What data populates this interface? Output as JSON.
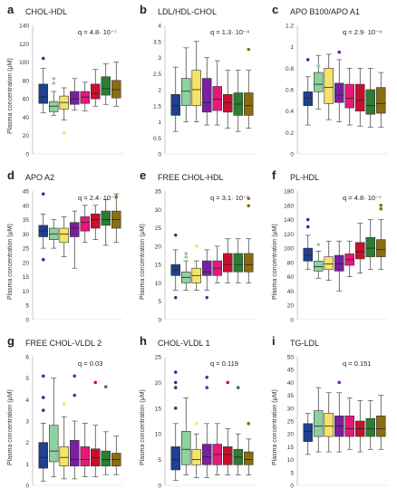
{
  "figure": {
    "series_colors": [
      "#1f3f8f",
      "#8fd19e",
      "#f4e36a",
      "#7a1fa2",
      "#e8177a",
      "#c8102e",
      "#2e7d32",
      "#8a6d12"
    ]
  },
  "chart_data": [
    {
      "panel": "a",
      "type": "box",
      "title": "CHOL-HDL",
      "q": "q = 4.8· 10⁻⁷",
      "ylabel": "Plasma concentration (μM)",
      "ylim": [
        0,
        140
      ],
      "ticks": [
        0,
        20,
        40,
        60,
        80,
        100,
        120,
        140
      ],
      "boxes": [
        {
          "min": 45,
          "q1": 55,
          "median": 62,
          "q3": 76,
          "max": 93,
          "outliers": [
            104
          ]
        },
        {
          "min": 42,
          "q1": 46,
          "median": 52,
          "q3": 57,
          "max": 68,
          "outliers": [
            77,
            82
          ]
        },
        {
          "min": 37,
          "q1": 49,
          "median": 56,
          "q3": 63,
          "max": 72,
          "outliers": [
            23
          ]
        },
        {
          "min": 48,
          "q1": 54,
          "median": 60,
          "q3": 68,
          "max": 82,
          "outliers": []
        },
        {
          "min": 47,
          "q1": 55,
          "median": 62,
          "q3": 68,
          "max": 78,
          "outliers": []
        },
        {
          "min": 52,
          "q1": 60,
          "median": 66,
          "q3": 76,
          "max": 92,
          "outliers": []
        },
        {
          "min": 54,
          "q1": 64,
          "median": 71,
          "q3": 84,
          "max": 98,
          "outliers": []
        },
        {
          "min": 52,
          "q1": 61,
          "median": 70,
          "q3": 80,
          "max": 100,
          "outliers": []
        }
      ]
    },
    {
      "panel": "b",
      "type": "box",
      "title": "LDL/HDL-CHOL",
      "q": "q = 1.3· 10⁻⁴",
      "ylabel": "",
      "ylim": [
        0,
        4
      ],
      "ticks": [
        0,
        0.5,
        1,
        1.5,
        2,
        2.5,
        3,
        3.5,
        4
      ],
      "boxes": [
        {
          "min": 0.7,
          "q1": 1.2,
          "median": 1.5,
          "q3": 1.85,
          "max": 2.7,
          "outliers": []
        },
        {
          "min": 1.0,
          "q1": 1.5,
          "median": 1.95,
          "q3": 2.35,
          "max": 3.3,
          "outliers": []
        },
        {
          "min": 1.0,
          "q1": 1.5,
          "median": 2.0,
          "q3": 2.6,
          "max": 3.5,
          "outliers": []
        },
        {
          "min": 0.9,
          "q1": 1.3,
          "median": 1.6,
          "q3": 2.35,
          "max": 3.0,
          "outliers": []
        },
        {
          "min": 0.9,
          "q1": 1.35,
          "median": 1.7,
          "q3": 2.1,
          "max": 2.9,
          "outliers": []
        },
        {
          "min": 0.8,
          "q1": 1.3,
          "median": 1.6,
          "q3": 1.85,
          "max": 2.6,
          "outliers": []
        },
        {
          "min": 0.7,
          "q1": 1.2,
          "median": 1.55,
          "q3": 1.9,
          "max": 2.6,
          "outliers": []
        },
        {
          "min": 0.8,
          "q1": 1.2,
          "median": 1.5,
          "q3": 1.9,
          "max": 2.6,
          "outliers": [
            3.25
          ]
        }
      ]
    },
    {
      "panel": "c",
      "type": "box",
      "title": "APO B100/APO A1",
      "q": "q = 2.9· 10⁻⁴",
      "ylabel": "",
      "ylim": [
        0,
        1.2
      ],
      "ticks": [
        0,
        0.2,
        0.4,
        0.6,
        0.8,
        1,
        1.2
      ],
      "boxes": [
        {
          "min": 0.27,
          "q1": 0.45,
          "median": 0.52,
          "q3": 0.58,
          "max": 0.72,
          "outliers": [
            0.88
          ]
        },
        {
          "min": 0.42,
          "q1": 0.58,
          "median": 0.65,
          "q3": 0.76,
          "max": 0.92,
          "outliers": [
            0.82
          ]
        },
        {
          "min": 0.32,
          "q1": 0.47,
          "median": 0.62,
          "q3": 0.8,
          "max": 0.93,
          "outliers": []
        },
        {
          "min": 0.3,
          "q1": 0.48,
          "median": 0.55,
          "q3": 0.66,
          "max": 0.88,
          "outliers": [
            0.95
          ]
        },
        {
          "min": 0.27,
          "q1": 0.43,
          "median": 0.52,
          "q3": 0.65,
          "max": 0.8,
          "outliers": []
        },
        {
          "min": 0.26,
          "q1": 0.4,
          "median": 0.5,
          "q3": 0.65,
          "max": 0.8,
          "outliers": []
        },
        {
          "min": 0.25,
          "q1": 0.37,
          "median": 0.45,
          "q3": 0.6,
          "max": 0.8,
          "outliers": []
        },
        {
          "min": 0.25,
          "q1": 0.38,
          "median": 0.47,
          "q3": 0.62,
          "max": 0.76,
          "outliers": []
        }
      ]
    },
    {
      "panel": "d",
      "type": "box",
      "title": "APO A2",
      "q": "q = 2.4· 10⁻⁵",
      "ylabel": "Plasma concentration (μM)",
      "ylim": [
        0,
        45
      ],
      "ticks": [
        0,
        5,
        10,
        15,
        20,
        25,
        30,
        35,
        40,
        45
      ],
      "boxes": [
        {
          "min": 25,
          "q1": 29,
          "median": 31,
          "q3": 33,
          "max": 37,
          "outliers": [
            21,
            44
          ]
        },
        {
          "min": 25,
          "q1": 28,
          "median": 30,
          "q3": 32,
          "max": 35,
          "outliers": []
        },
        {
          "min": 22,
          "q1": 27,
          "median": 30,
          "q3": 32,
          "max": 36,
          "outliers": []
        },
        {
          "min": 18,
          "q1": 29,
          "median": 32,
          "q3": 34,
          "max": 38,
          "outliers": []
        },
        {
          "min": 27,
          "q1": 31,
          "median": 34,
          "q3": 36,
          "max": 40,
          "outliers": []
        },
        {
          "min": 28,
          "q1": 32,
          "median": 35,
          "q3": 37,
          "max": 40,
          "outliers": []
        },
        {
          "min": 26,
          "q1": 33,
          "median": 35,
          "q3": 38,
          "max": 42,
          "outliers": []
        },
        {
          "min": 27,
          "q1": 32,
          "median": 35,
          "q3": 38,
          "max": 44,
          "outliers": [
            43
          ]
        }
      ]
    },
    {
      "panel": "e",
      "type": "box",
      "title": "FREE CHOL-HDL",
      "q": "q = 3.1· 10⁻⁵",
      "ylabel": "Plasma concentration (μM)",
      "ylim": [
        0,
        35
      ],
      "ticks": [
        0,
        5,
        10,
        15,
        20,
        25,
        30,
        35
      ],
      "boxes": [
        {
          "min": 8,
          "q1": 12,
          "median": 13.5,
          "q3": 15,
          "max": 19,
          "outliers": [
            6,
            23
          ]
        },
        {
          "min": 8,
          "q1": 10,
          "median": 11.5,
          "q3": 13,
          "max": 16,
          "outliers": [
            17,
            18
          ]
        },
        {
          "min": 8,
          "q1": 10,
          "median": 12,
          "q3": 14,
          "max": 16,
          "outliers": [
            20
          ]
        },
        {
          "min": 8,
          "q1": 12,
          "median": 13,
          "q3": 16,
          "max": 19,
          "outliers": [
            6
          ]
        },
        {
          "min": 10,
          "q1": 12,
          "median": 14,
          "q3": 16,
          "max": 20,
          "outliers": []
        },
        {
          "min": 10,
          "q1": 13,
          "median": 15,
          "q3": 18,
          "max": 22,
          "outliers": []
        },
        {
          "min": 10,
          "q1": 13,
          "median": 15,
          "q3": 18,
          "max": 22,
          "outliers": []
        },
        {
          "min": 10,
          "q1": 13,
          "median": 15,
          "q3": 18,
          "max": 22,
          "outliers": [
            31,
            33
          ]
        }
      ]
    },
    {
      "panel": "f",
      "type": "box",
      "title": "PL-HDL",
      "q": "q = 4.8· 10⁻⁷",
      "ylabel": "Plasma concentration (μM)",
      "ylim": [
        0,
        180
      ],
      "ticks": [
        0,
        20,
        40,
        60,
        80,
        100,
        120,
        140,
        160,
        180
      ],
      "boxes": [
        {
          "min": 70,
          "q1": 82,
          "median": 90,
          "q3": 100,
          "max": 118,
          "outliers": [
            130,
            140
          ]
        },
        {
          "min": 58,
          "q1": 68,
          "median": 74,
          "q3": 82,
          "max": 96,
          "outliers": [
            105
          ]
        },
        {
          "min": 55,
          "q1": 70,
          "median": 78,
          "q3": 88,
          "max": 110,
          "outliers": []
        },
        {
          "min": 40,
          "q1": 68,
          "median": 78,
          "q3": 90,
          "max": 110,
          "outliers": []
        },
        {
          "min": 60,
          "q1": 76,
          "median": 84,
          "q3": 92,
          "max": 110,
          "outliers": []
        },
        {
          "min": 65,
          "q1": 85,
          "median": 95,
          "q3": 108,
          "max": 135,
          "outliers": []
        },
        {
          "min": 70,
          "q1": 88,
          "median": 100,
          "q3": 115,
          "max": 140,
          "outliers": []
        },
        {
          "min": 70,
          "q1": 88,
          "median": 98,
          "q3": 112,
          "max": 140,
          "outliers": [
            155,
            160
          ]
        }
      ]
    },
    {
      "panel": "g",
      "type": "box",
      "title": "FREE CHOL-VLDL 2",
      "q": "q = 0.03",
      "ylabel": "Plasma concentration (μM)",
      "ylim": [
        0,
        6
      ],
      "ticks": [
        0,
        1,
        2,
        3,
        4,
        5,
        6
      ],
      "boxes": [
        {
          "min": 0.2,
          "q1": 0.8,
          "median": 1.3,
          "q3": 2.0,
          "max": 2.9,
          "outliers": [
            3.5,
            4.1,
            5.1
          ]
        },
        {
          "min": 0.4,
          "q1": 1.1,
          "median": 1.6,
          "q3": 2.8,
          "max": 5.0,
          "outliers": []
        },
        {
          "min": 0.3,
          "q1": 0.9,
          "median": 1.3,
          "q3": 1.8,
          "max": 3.2,
          "outliers": [
            3.8
          ]
        },
        {
          "min": 0.3,
          "q1": 0.9,
          "median": 1.2,
          "q3": 2.1,
          "max": 3.0,
          "outliers": [
            4.2,
            5.1
          ]
        },
        {
          "min": 0.4,
          "q1": 0.9,
          "median": 1.2,
          "q3": 1.8,
          "max": 2.9,
          "outliers": []
        },
        {
          "min": 0.4,
          "q1": 0.9,
          "median": 1.3,
          "q3": 1.7,
          "max": 2.8,
          "outliers": [
            4.8
          ]
        },
        {
          "min": 0.5,
          "q1": 0.9,
          "median": 1.2,
          "q3": 1.6,
          "max": 2.5,
          "outliers": [
            4.6
          ]
        },
        {
          "min": 0.5,
          "q1": 0.9,
          "median": 1.2,
          "q3": 1.5,
          "max": 2.3,
          "outliers": []
        }
      ]
    },
    {
      "panel": "h",
      "type": "box",
      "title": "CHOL-VLDL  1",
      "q": "q = 0.119",
      "ylabel": "Plasma concentration (μM)",
      "ylim": [
        0,
        25
      ],
      "ticks": [
        0,
        5,
        10,
        15,
        20,
        25
      ],
      "boxes": [
        {
          "min": 1,
          "q1": 3,
          "median": 5,
          "q3": 7.5,
          "max": 12,
          "outliers": [
            15,
            19,
            20,
            22
          ]
        },
        {
          "min": 2,
          "q1": 4,
          "median": 7,
          "q3": 10.5,
          "max": 17,
          "outliers": []
        },
        {
          "min": 1.5,
          "q1": 4,
          "median": 5,
          "q3": 7,
          "max": 10,
          "outliers": [
            12
          ]
        },
        {
          "min": 1.5,
          "q1": 4,
          "median": 5.5,
          "q3": 8,
          "max": 12,
          "outliers": [
            19,
            21
          ]
        },
        {
          "min": 2,
          "q1": 4,
          "median": 6,
          "q3": 8,
          "max": 12,
          "outliers": []
        },
        {
          "min": 2,
          "q1": 4,
          "median": 6,
          "q3": 7.5,
          "max": 11,
          "outliers": [
            20
          ]
        },
        {
          "min": 2,
          "q1": 4,
          "median": 5.5,
          "q3": 7,
          "max": 10,
          "outliers": [
            19
          ]
        },
        {
          "min": 2,
          "q1": 4,
          "median": 5,
          "q3": 6.5,
          "max": 9,
          "outliers": [
            12
          ]
        }
      ]
    },
    {
      "panel": "i",
      "type": "box",
      "title": "TG-LDL",
      "q": "q = 0.151",
      "ylabel": "Plasma concentration (μM)",
      "ylim": [
        0,
        50
      ],
      "ticks": [
        0,
        5,
        10,
        15,
        20,
        25,
        30,
        35,
        40,
        45,
        50
      ],
      "boxes": [
        {
          "min": 12,
          "q1": 17,
          "median": 21,
          "q3": 24,
          "max": 28,
          "outliers": []
        },
        {
          "min": 13,
          "q1": 19,
          "median": 23,
          "q3": 29,
          "max": 38,
          "outliers": []
        },
        {
          "min": 13,
          "q1": 19,
          "median": 23,
          "q3": 28,
          "max": 36,
          "outliers": []
        },
        {
          "min": 13,
          "q1": 19,
          "median": 23,
          "q3": 27,
          "max": 36,
          "outliers": [
            40
          ]
        },
        {
          "min": 14,
          "q1": 19,
          "median": 22,
          "q3": 27,
          "max": 34,
          "outliers": []
        },
        {
          "min": 13,
          "q1": 19,
          "median": 22,
          "q3": 25,
          "max": 33,
          "outliers": []
        },
        {
          "min": 14,
          "q1": 19,
          "median": 22,
          "q3": 26,
          "max": 33,
          "outliers": []
        },
        {
          "min": 14,
          "q1": 19,
          "median": 22,
          "q3": 27,
          "max": 35,
          "outliers": []
        }
      ]
    }
  ]
}
